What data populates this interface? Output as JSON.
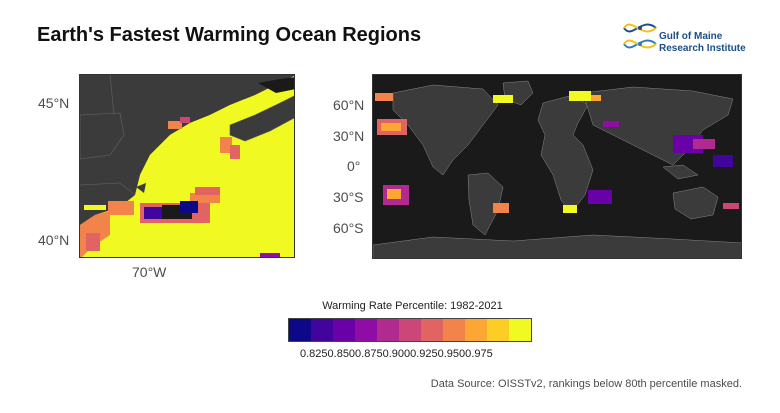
{
  "title": "Earth's Fastest Warming Ocean Regions",
  "logo": {
    "line1": "Gulf of Maine",
    "line2": "Research Institute",
    "accent_colors": [
      "#1a4f8a",
      "#f2c31b",
      "#2a7fba"
    ]
  },
  "left_map": {
    "lat_labels": [
      "45°N",
      "40°N"
    ],
    "lon_labels": [
      "70°W"
    ]
  },
  "right_map": {
    "lat_labels": [
      "60°N",
      "30°N",
      "0°",
      "30°S",
      "60°S"
    ]
  },
  "legend": {
    "title": "Warming Rate Percentile: 1982-2021",
    "tick_text": "0.8250.8500.8750.9000.9250.9500.975",
    "colors": [
      "#0d0887",
      "#41049d",
      "#6a00a8",
      "#8f0da4",
      "#b12a90",
      "#cc4778",
      "#e16462",
      "#f2844b",
      "#fca636",
      "#fcce25",
      "#f0f921"
    ]
  },
  "source": "Data Source: OISSTv2, rankings below 80th percentile masked.",
  "colors": {
    "land": "#3b3b3b",
    "ocean_masked": "#1a1a1a",
    "hot": "#f0f921"
  }
}
